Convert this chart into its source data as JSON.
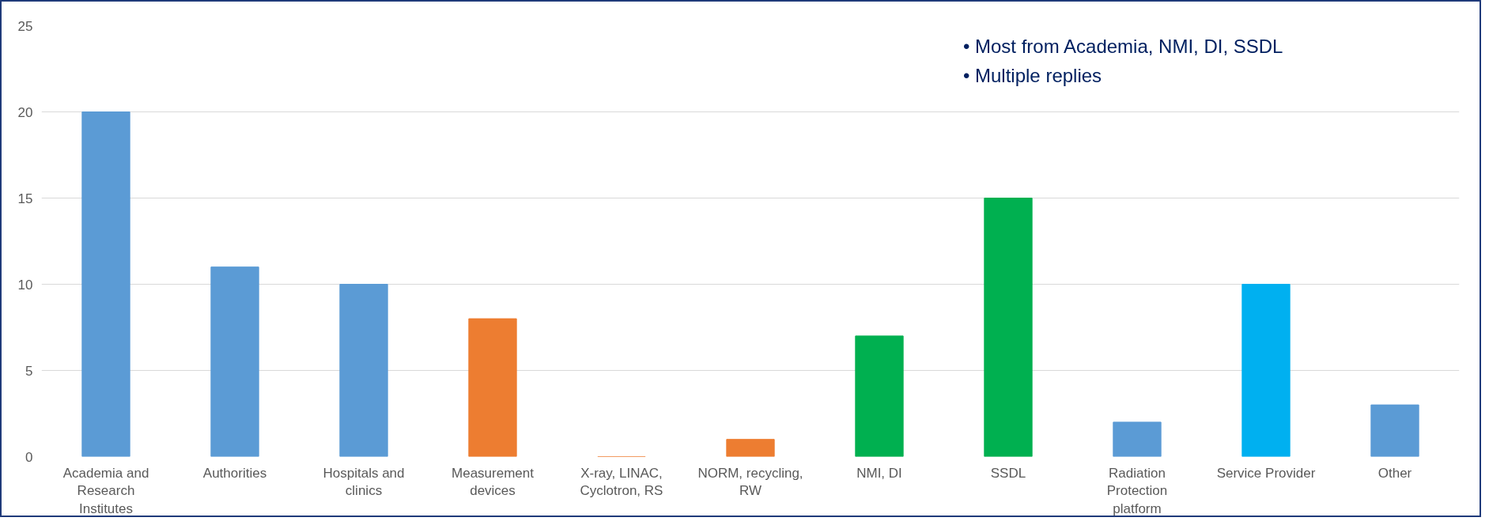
{
  "chart_data": {
    "type": "bar",
    "categories": [
      "Academia and Research Institutes",
      "Authorities",
      "Hospitals and clinics",
      "Measurement devices",
      "X-ray, LINAC, Cyclotron, RS",
      "NORM, recycling, RW",
      "NMI, DI",
      "SSDL",
      "Radiation Protection platform",
      "Service Provider",
      "Other"
    ],
    "values": [
      20,
      11,
      10,
      8,
      0,
      1,
      7,
      15,
      2,
      10,
      3
    ],
    "colors": [
      "#5b9bd5",
      "#5b9bd5",
      "#5b9bd5",
      "#ed7d31",
      "#ed7d31",
      "#ed7d31",
      "#00b050",
      "#00b050",
      "#5b9bd5",
      "#00b0f0",
      "#5b9bd5"
    ],
    "ylim": [
      0,
      25
    ],
    "yticks": [
      0,
      5,
      10,
      15,
      20,
      25
    ],
    "grid": "y",
    "annotations": [
      "• Most from Academia, NMI, DI, SSDL",
      "• Multiple replies"
    ]
  }
}
